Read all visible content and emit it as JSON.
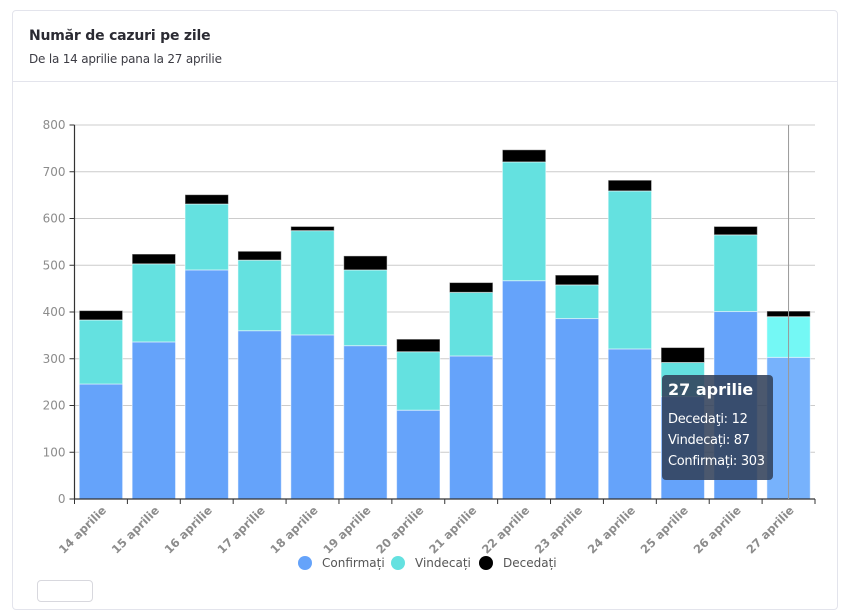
{
  "card": {
    "title": "Număr de cazuri pe zile",
    "subtitle": "De la 14 aprilie pana la 27 aprilie"
  },
  "colors": {
    "confirmed": "#65a3fa",
    "recovered": "#64e1e0",
    "deaths": "#000000",
    "confirmed_hover": "#77b2fc",
    "recovered_hover": "#74f8f5",
    "grid": "#cccccc",
    "axis": "#333333"
  },
  "chart_data": {
    "type": "bar",
    "stacked": true,
    "title": "Număr de cazuri pe zile",
    "subtitle": "De la 14 aprilie pana la 27 aprilie",
    "xlabel": "",
    "ylabel": "",
    "ylim": [
      0,
      800
    ],
    "yticks": [
      0,
      100,
      200,
      300,
      400,
      500,
      600,
      700,
      800
    ],
    "grid": true,
    "legend_position": "bottom",
    "categories": [
      "14 aprilie",
      "15 aprilie",
      "16 aprilie",
      "17 aprilie",
      "18 aprilie",
      "19 aprilie",
      "20 aprilie",
      "21 aprilie",
      "22 aprilie",
      "23 aprilie",
      "24 aprilie",
      "25 aprilie",
      "26 aprilie",
      "27 aprilie"
    ],
    "series": [
      {
        "name": "Confirmați",
        "values": [
          246,
          336,
          490,
          360,
          351,
          328,
          190,
          306,
          467,
          386,
          321,
          219,
          401,
          303
        ]
      },
      {
        "name": "Vindecați",
        "values": [
          137,
          167,
          141,
          151,
          223,
          162,
          125,
          136,
          254,
          72,
          338,
          73,
          164,
          87
        ]
      },
      {
        "name": "Decedați",
        "values": [
          20,
          21,
          20,
          19,
          9,
          30,
          27,
          21,
          26,
          21,
          23,
          32,
          18,
          12
        ]
      }
    ],
    "hovered_category": "27 aprilie"
  },
  "legend": [
    {
      "label": "Confirmați",
      "icon": "circle"
    },
    {
      "label": "Vindecați",
      "icon": "circle"
    },
    {
      "label": "Decedați",
      "icon": "circle"
    }
  ],
  "tooltip": {
    "title": "27 aprilie",
    "lines": [
      "Decedaţi: 12",
      "Vindecați: 87",
      "Confirmați: 303"
    ]
  }
}
